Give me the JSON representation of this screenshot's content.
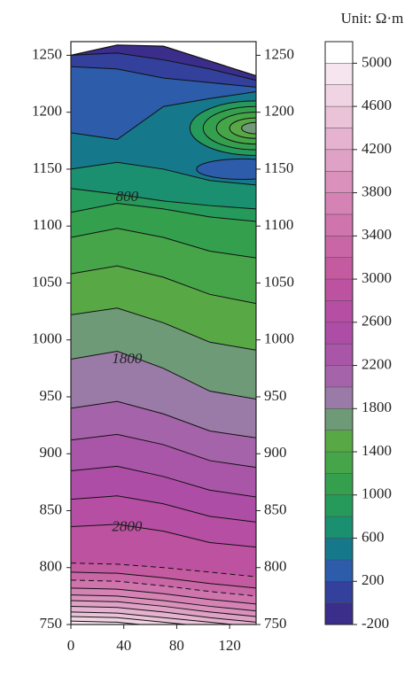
{
  "chart_data": {
    "type": "contour",
    "x": [
      0,
      35,
      70,
      105,
      140
    ],
    "xlim": [
      0,
      140
    ],
    "xticks": [
      0,
      40,
      80,
      120
    ],
    "ylim": [
      750,
      1262
    ],
    "yticks": [
      750,
      800,
      850,
      900,
      950,
      1000,
      1050,
      1100,
      1150,
      1200,
      1250
    ],
    "surface": [
      1250,
      1259,
      1258,
      1245,
      1232
    ],
    "contours": [
      {
        "level": 4800,
        "y": [
          753,
          752,
          748,
          745,
          742
        ]
      },
      {
        "level": 4600,
        "y": [
          757,
          756,
          752,
          748,
          745
        ]
      },
      {
        "level": 4400,
        "y": [
          761,
          760,
          756,
          752,
          748
        ]
      },
      {
        "level": 4200,
        "y": [
          766,
          765,
          761,
          756,
          752
        ]
      },
      {
        "level": 4000,
        "y": [
          771,
          770,
          766,
          761,
          757
        ]
      },
      {
        "level": 3800,
        "y": [
          776,
          775,
          771,
          766,
          762
        ]
      },
      {
        "level": 3600,
        "y": [
          782,
          781,
          777,
          772,
          768
        ]
      },
      {
        "level": 3400,
        "y": [
          789,
          788,
          784,
          779,
          775
        ],
        "dashed": true
      },
      {
        "level": 3200,
        "y": [
          796,
          795,
          791,
          786,
          782
        ]
      },
      {
        "level": 3000,
        "y": [
          804,
          803,
          800,
          796,
          792
        ],
        "dashed": true
      },
      {
        "level": 2800,
        "y": [
          836,
          838,
          832,
          822,
          818
        ],
        "labeled": true
      },
      {
        "level": 2600,
        "y": [
          860,
          863,
          856,
          845,
          840
        ]
      },
      {
        "level": 2400,
        "y": [
          885,
          889,
          880,
          868,
          862
        ]
      },
      {
        "level": 2200,
        "y": [
          912,
          917,
          908,
          894,
          888
        ]
      },
      {
        "level": 2000,
        "y": [
          940,
          946,
          935,
          920,
          914
        ]
      },
      {
        "level": 1800,
        "y": [
          983,
          990,
          975,
          955,
          948
        ],
        "labeled": true
      },
      {
        "level": 1600,
        "y": [
          1022,
          1028,
          1015,
          998,
          991
        ]
      },
      {
        "level": 1400,
        "y": [
          1058,
          1065,
          1055,
          1040,
          1032
        ]
      },
      {
        "level": 1200,
        "y": [
          1090,
          1098,
          1090,
          1078,
          1072
        ]
      },
      {
        "level": 1000,
        "y": [
          1112,
          1120,
          1115,
          1108,
          1104
        ]
      },
      {
        "level": 800,
        "y": [
          1133,
          1128,
          1122,
          1118,
          1115
        ],
        "labeled": true
      },
      {
        "level": 600,
        "y": [
          1150,
          1156,
          1150,
          1140,
          1136
        ]
      },
      {
        "level": 400,
        "y": [
          1182,
          1176,
          1205,
          1212,
          1218
        ]
      },
      {
        "level": 200,
        "y": [
          1240,
          1238,
          1230,
          1226,
          1222
        ]
      },
      {
        "level": 0,
        "y": [
          1250,
          1252,
          1246,
          1238,
          1228
        ]
      }
    ],
    "lenses": [
      {
        "value": 300,
        "cx": 130,
        "cy": 1150,
        "rx": 35,
        "ry": 9
      },
      {
        "value": 900,
        "cx": 140,
        "cy": 1186,
        "rx": 50,
        "ry": 24
      },
      {
        "value": 1100,
        "cx": 140,
        "cy": 1186,
        "rx": 40,
        "ry": 19
      },
      {
        "value": 1300,
        "cx": 140,
        "cy": 1186,
        "rx": 30,
        "ry": 14
      },
      {
        "value": 1500,
        "cx": 140,
        "cy": 1186,
        "rx": 20,
        "ry": 9
      },
      {
        "value": 1700,
        "cx": 140,
        "cy": 1186,
        "rx": 11,
        "ry": 5
      }
    ],
    "colorbar": {
      "title": "Unit: Ω·m",
      "levels": [
        -200,
        0,
        200,
        400,
        600,
        800,
        1000,
        1200,
        1400,
        1600,
        1800,
        2000,
        2200,
        2400,
        2600,
        2800,
        3000,
        3200,
        3400,
        3600,
        3800,
        4000,
        4200,
        4400,
        4600,
        4800,
        5000,
        5200
      ],
      "colors": [
        "#3b2d8a",
        "#33409c",
        "#2c5caa",
        "#16788b",
        "#1a9070",
        "#259a5a",
        "#34a04e",
        "#45a548",
        "#58a946",
        "#6e9a78",
        "#9a7aa6",
        "#a564aa",
        "#a955a8",
        "#ae4da6",
        "#b64ea3",
        "#bd52a0",
        "#c45a9f",
        "#c966a6",
        "#cf74ad",
        "#d583b5",
        "#da92bd",
        "#dfa2c6",
        "#e5b3cf",
        "#eac3d9",
        "#f0d4e4",
        "#f6e5ee",
        "#ffffff"
      ],
      "ticks": [
        -200,
        200,
        600,
        1000,
        1400,
        1800,
        2200,
        2600,
        3000,
        3400,
        3800,
        4200,
        4600,
        5000
      ]
    }
  }
}
